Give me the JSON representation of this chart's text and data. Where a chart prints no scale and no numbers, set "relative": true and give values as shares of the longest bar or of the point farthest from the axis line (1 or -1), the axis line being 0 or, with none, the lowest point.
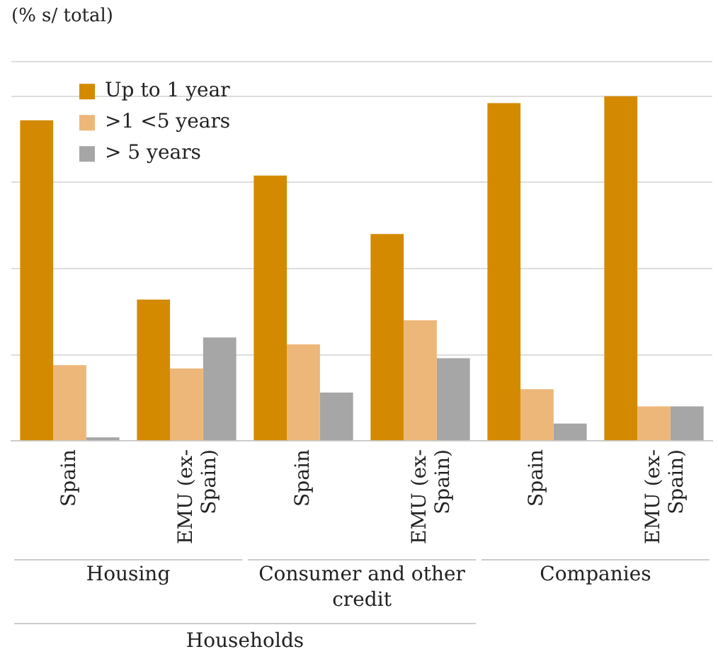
{
  "chart_data": {
    "type": "bar",
    "title": "(% s/ total)",
    "relative": true,
    "grid": "y",
    "legend": "top left",
    "categories": [
      "Spain",
      "EMU (ex-Spain)",
      "Spain",
      "EMU (ex-Spain)",
      "Spain",
      "EMU (ex-Spain)"
    ],
    "series": [
      {
        "name": "Up to 1 year",
        "color": "#d48a00",
        "values": [
          0.93,
          0.41,
          0.77,
          0.6,
          0.98,
          1
        ]
      },
      {
        "name": ">1 <5 years",
        "color": "#edb77a",
        "values": [
          0.22,
          0.21,
          0.28,
          0.35,
          0.15,
          0.1
        ]
      },
      {
        "name": "> 5 years",
        "color": "#a6a6a6",
        "values": [
          0.01,
          0.3,
          0.14,
          0.24,
          0.05,
          0.1
        ]
      }
    ],
    "annotations": [
      "Housing",
      "Consumer and other credit",
      "Companies",
      "Households"
    ]
  }
}
